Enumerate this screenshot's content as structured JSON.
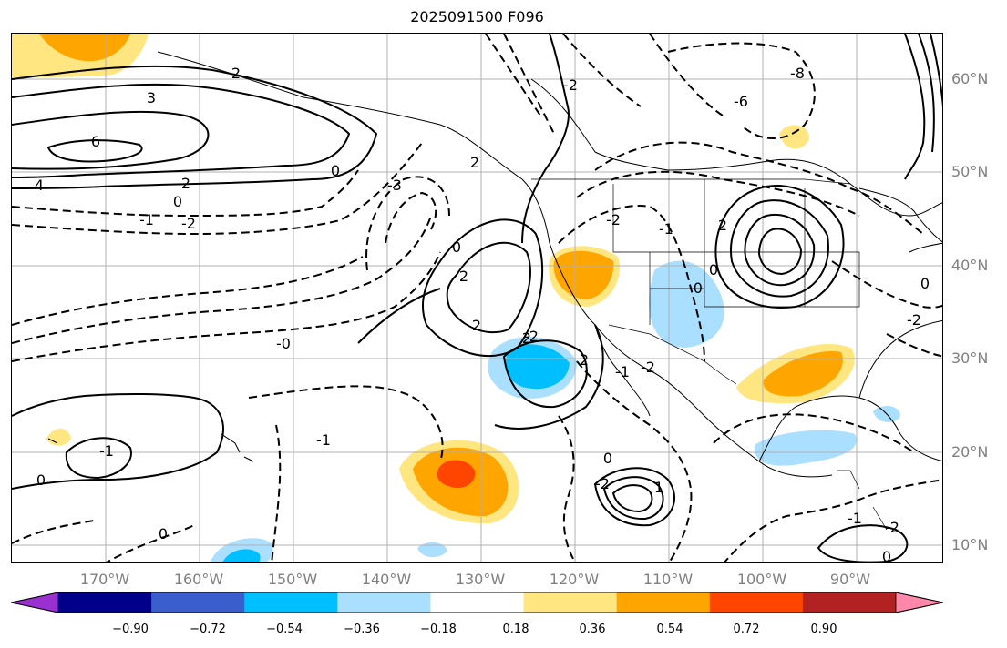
{
  "title": "2025091500 F096",
  "lat_labels": [
    "60°N",
    "50°N",
    "40°N",
    "30°N",
    "20°N",
    "10°N"
  ],
  "lon_labels": [
    "170°W",
    "160°W",
    "150°W",
    "140°W",
    "130°W",
    "120°W",
    "110°W",
    "100°W",
    "90°W"
  ],
  "colorbar": {
    "colors": [
      "#9b30d0",
      "#00008b",
      "#3a5fcd",
      "#00bfff",
      "#aadfff",
      "#ffffff",
      "#ffe680",
      "#ffa500",
      "#ff4500",
      "#b22222",
      "#ff88aa"
    ],
    "ticks": [
      "−0.90",
      "−0.72",
      "−0.54",
      "−0.36",
      "−0.18",
      "0.18",
      "0.36",
      "0.54",
      "0.72",
      "0.90"
    ]
  },
  "contour_labels": [
    "2",
    "3",
    "6",
    "4",
    "2",
    "0",
    "-1",
    "-2",
    "0",
    "-3",
    "2",
    "0",
    "2",
    "2",
    "-2",
    "-2",
    "-0",
    "-0",
    "-1",
    "0",
    "-1",
    "0",
    "1",
    "0",
    "-2",
    "2",
    "-1",
    "-2",
    "2",
    "-1",
    "0",
    "-2",
    "0",
    "-2",
    "-6",
    "-8",
    "-1",
    "-2",
    "2",
    "0"
  ],
  "colors": {
    "axis": "#000000",
    "grid": "#b0b0b0",
    "label": "#808080"
  }
}
